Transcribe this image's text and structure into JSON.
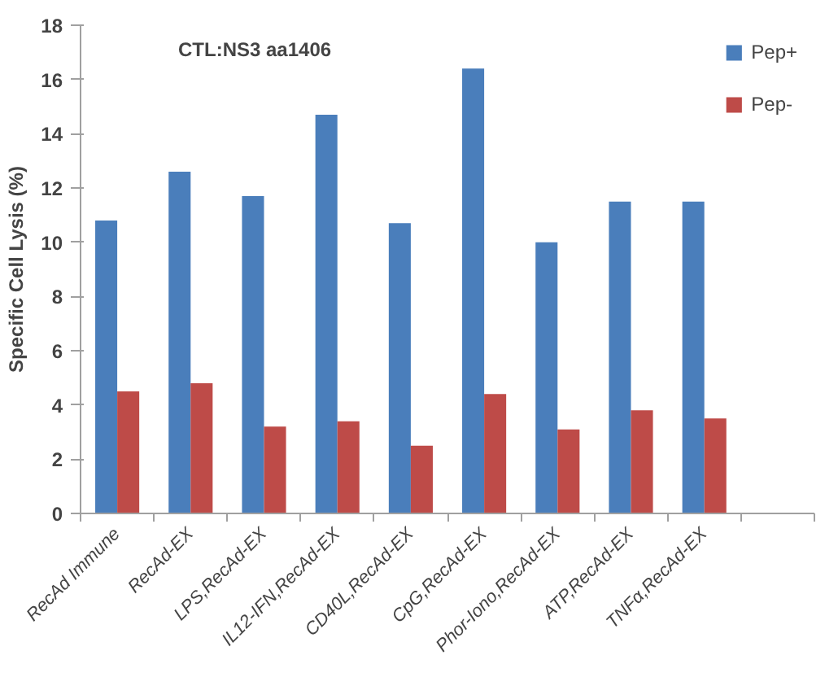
{
  "chart_data": {
    "type": "bar",
    "title": "CTL:NS3 aa1406",
    "ylabel": "Specific Cell Lysis (%)",
    "categories": [
      "RecAd Immune",
      "RecAd-EX",
      "LPS,RecAd-EX",
      "IL12-IFN,RecAd-EX",
      "CD40L,RecAd-EX",
      "CpG,RecAd-EX",
      "Phor-Iono,RecAd-EX",
      "ATP,RecAd-EX",
      "TNFα,RecAd-EX",
      null
    ],
    "series": [
      {
        "name": "Pep+",
        "color": "#4a7ebb",
        "values": [
          10.8,
          12.6,
          11.7,
          14.7,
          10.7,
          16.4,
          10.0,
          11.5,
          11.5,
          null
        ]
      },
      {
        "name": "Pep-",
        "color": "#be4b48",
        "values": [
          4.5,
          4.8,
          3.2,
          3.4,
          2.5,
          4.4,
          3.1,
          3.8,
          3.5,
          null
        ]
      }
    ],
    "ylim": [
      0,
      18
    ],
    "yticks": [
      0,
      2,
      4,
      6,
      8,
      10,
      12,
      14,
      16,
      18
    ],
    "grid": false,
    "legend": "top right"
  }
}
